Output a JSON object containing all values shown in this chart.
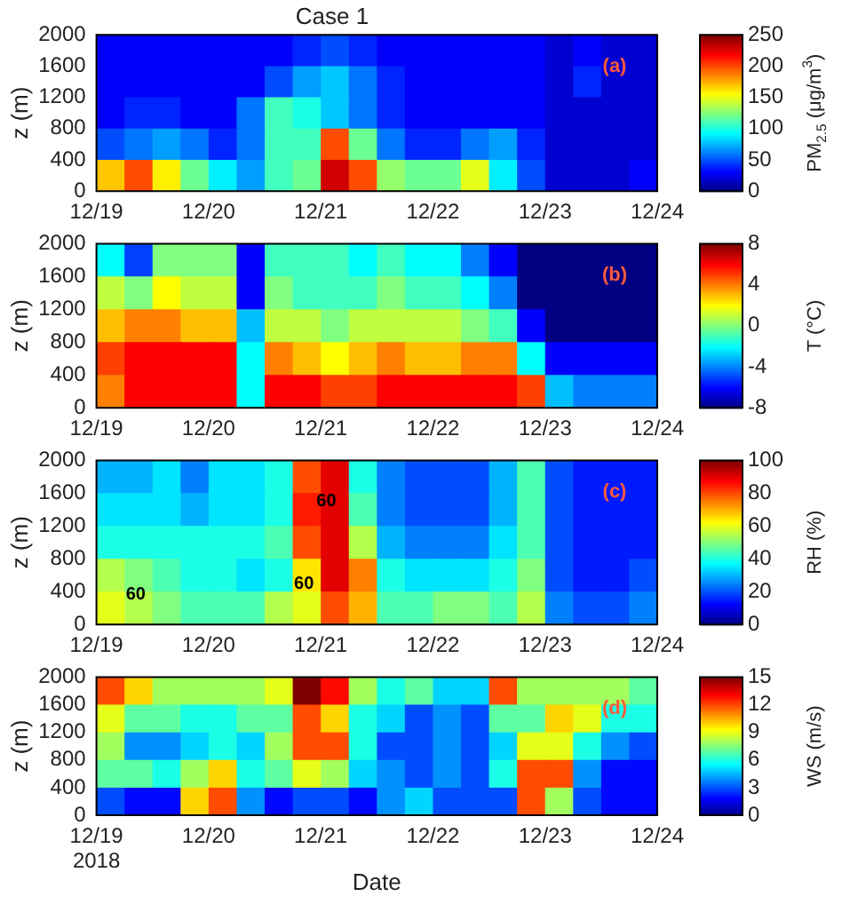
{
  "chart_data": [
    {
      "type": "heatmap",
      "title": "Case 1",
      "ylabel": "z (m)",
      "clabel": "PM$_{2.5}$ (μg/m$^{3}$)",
      "annotations": [
        "(a)"
      ],
      "x": [
        "2018-12-19T03:00",
        "2018-12-19T09:00",
        "2018-12-19T15:00",
        "2018-12-19T21:00",
        "2018-12-20T03:00",
        "2018-12-20T09:00",
        "2018-12-20T15:00",
        "2018-12-20T21:00",
        "2018-12-21T03:00",
        "2018-12-21T09:00",
        "2018-12-21T15:00",
        "2018-12-21T21:00",
        "2018-12-22T03:00",
        "2018-12-22T09:00",
        "2018-12-22T15:00",
        "2018-12-22T21:00",
        "2018-12-23T03:00",
        "2018-12-23T09:00",
        "2018-12-23T15:00",
        "2018-12-23T21:00"
      ],
      "xlim": [
        "2018-12-19",
        "2018-12-24"
      ],
      "xticks": [
        {
          "value": "2018-12-19",
          "label": "12/19"
        },
        {
          "value": "2018-12-20",
          "label": "12/20"
        },
        {
          "value": "2018-12-21",
          "label": "12/21"
        },
        {
          "value": "2018-12-22",
          "label": "12/22"
        },
        {
          "value": "2018-12-23",
          "label": "12/23"
        },
        {
          "value": "2018-12-24",
          "label": "12/24"
        }
      ],
      "ylim": [
        0,
        2000
      ],
      "yticks": [
        0,
        400,
        800,
        1200,
        1600,
        2000
      ],
      "cells": [
        [
          30,
          30,
          30,
          30,
          30,
          30,
          30,
          40,
          50,
          40,
          30,
          30,
          30,
          30,
          30,
          30,
          20,
          30,
          20,
          20
        ],
        [
          30,
          30,
          30,
          30,
          30,
          30,
          50,
          70,
          80,
          60,
          40,
          30,
          30,
          30,
          30,
          30,
          20,
          40,
          20,
          20
        ],
        [
          30,
          40,
          40,
          30,
          30,
          60,
          110,
          100,
          80,
          60,
          40,
          30,
          30,
          30,
          30,
          30,
          20,
          20,
          20,
          20
        ],
        [
          50,
          60,
          70,
          60,
          40,
          60,
          110,
          110,
          200,
          120,
          60,
          40,
          40,
          60,
          70,
          40,
          20,
          20,
          20,
          20
        ],
        [
          170,
          200,
          160,
          120,
          90,
          70,
          110,
          120,
          230,
          200,
          130,
          120,
          120,
          150,
          90,
          50,
          20,
          20,
          20,
          30
        ]
      ],
      "clim": [
        0,
        250
      ],
      "cticks": [
        0,
        50,
        100,
        150,
        200,
        250
      ]
    },
    {
      "type": "heatmap",
      "ylabel": "z (m)",
      "clabel": "T (°C)",
      "annotations": [
        "(b)"
      ],
      "x": [
        "2018-12-19T03:00",
        "2018-12-19T09:00",
        "2018-12-19T15:00",
        "2018-12-19T21:00",
        "2018-12-20T03:00",
        "2018-12-20T09:00",
        "2018-12-20T15:00",
        "2018-12-20T21:00",
        "2018-12-21T03:00",
        "2018-12-21T09:00",
        "2018-12-21T15:00",
        "2018-12-21T21:00",
        "2018-12-22T03:00",
        "2018-12-22T09:00",
        "2018-12-22T15:00",
        "2018-12-22T21:00",
        "2018-12-23T03:00",
        "2018-12-23T09:00",
        "2018-12-23T15:00",
        "2018-12-23T21:00"
      ],
      "xlim": [
        "2018-12-19",
        "2018-12-24"
      ],
      "xticks": [
        {
          "value": "2018-12-19",
          "label": "12/19"
        },
        {
          "value": "2018-12-20",
          "label": "12/20"
        },
        {
          "value": "2018-12-21",
          "label": "12/21"
        },
        {
          "value": "2018-12-22",
          "label": "12/22"
        },
        {
          "value": "2018-12-23",
          "label": "12/23"
        },
        {
          "value": "2018-12-24",
          "label": "12/24"
        }
      ],
      "ylim": [
        0,
        2000
      ],
      "yticks": [
        0,
        400,
        800,
        1200,
        1600,
        2000
      ],
      "cells": [
        [
          -2,
          -5,
          0,
          0,
          0,
          -6,
          -1,
          -1,
          -1,
          -2,
          -1,
          -2,
          -2,
          -4,
          -6,
          -8,
          -8,
          -8,
          -8,
          -8
        ],
        [
          1,
          0,
          2,
          1,
          1,
          -6,
          0,
          -1,
          -1,
          -1,
          0,
          -1,
          -1,
          -2,
          -4,
          -8,
          -8,
          -8,
          -8,
          -8
        ],
        [
          3,
          4,
          4,
          3,
          3,
          -3,
          1,
          1,
          0,
          1,
          1,
          1,
          1,
          0,
          -1,
          -6,
          -8,
          -8,
          -8,
          -8
        ],
        [
          5,
          6,
          6,
          6,
          6,
          -2,
          4,
          3,
          2,
          3,
          4,
          3,
          3,
          4,
          4,
          -2,
          -6,
          -6,
          -6,
          -6
        ],
        [
          4,
          6,
          6,
          6,
          6,
          -2,
          6,
          6,
          5,
          5,
          6,
          6,
          6,
          6,
          6,
          5,
          -3,
          -4,
          -4,
          -4
        ]
      ],
      "clim": [
        -8,
        8
      ],
      "cticks": [
        -8,
        -4,
        0,
        4,
        8
      ]
    },
    {
      "type": "heatmap",
      "ylabel": "z (m)",
      "clabel": "RH (%)",
      "annotations": [
        "(c)",
        "60",
        "60",
        "60"
      ],
      "x": [
        "2018-12-19T03:00",
        "2018-12-19T09:00",
        "2018-12-19T15:00",
        "2018-12-19T21:00",
        "2018-12-20T03:00",
        "2018-12-20T09:00",
        "2018-12-20T15:00",
        "2018-12-20T21:00",
        "2018-12-21T03:00",
        "2018-12-21T09:00",
        "2018-12-21T15:00",
        "2018-12-21T21:00",
        "2018-12-22T03:00",
        "2018-12-22T09:00",
        "2018-12-22T15:00",
        "2018-12-22T21:00",
        "2018-12-23T03:00",
        "2018-12-23T09:00",
        "2018-12-23T15:00",
        "2018-12-23T21:00"
      ],
      "xlim": [
        "2018-12-19",
        "2018-12-24"
      ],
      "xticks": [
        {
          "value": "2018-12-19",
          "label": "12/19"
        },
        {
          "value": "2018-12-20",
          "label": "12/20"
        },
        {
          "value": "2018-12-21",
          "label": "12/21"
        },
        {
          "value": "2018-12-22",
          "label": "12/22"
        },
        {
          "value": "2018-12-23",
          "label": "12/23"
        },
        {
          "value": "2018-12-24",
          "label": "12/24"
        }
      ],
      "ylim": [
        0,
        2000
      ],
      "yticks": [
        0,
        400,
        800,
        1200,
        1600,
        2000
      ],
      "cells": [
        [
          30,
          30,
          35,
          25,
          35,
          35,
          40,
          80,
          90,
          40,
          25,
          20,
          20,
          20,
          30,
          45,
          20,
          15,
          15,
          15
        ],
        [
          35,
          35,
          35,
          30,
          35,
          35,
          40,
          85,
          90,
          45,
          25,
          20,
          20,
          20,
          30,
          45,
          20,
          15,
          15,
          15
        ],
        [
          40,
          40,
          40,
          40,
          40,
          40,
          45,
          80,
          90,
          55,
          30,
          25,
          25,
          25,
          35,
          45,
          20,
          15,
          15,
          15
        ],
        [
          55,
          50,
          45,
          40,
          40,
          35,
          40,
          65,
          90,
          75,
          40,
          35,
          35,
          35,
          40,
          50,
          20,
          15,
          15,
          20
        ],
        [
          60,
          55,
          50,
          45,
          45,
          45,
          55,
          60,
          80,
          70,
          45,
          45,
          50,
          50,
          45,
          55,
          25,
          20,
          20,
          25
        ]
      ],
      "clim": [
        0,
        100
      ],
      "cticks": [
        0,
        20,
        40,
        60,
        80,
        100
      ]
    },
    {
      "type": "heatmap",
      "xlabel": "Date",
      "ylabel": "z (m)",
      "clabel": "WS (m/s)",
      "annotations": [
        "(d)",
        "2018"
      ],
      "x": [
        "2018-12-19T03:00",
        "2018-12-19T09:00",
        "2018-12-19T15:00",
        "2018-12-19T21:00",
        "2018-12-20T03:00",
        "2018-12-20T09:00",
        "2018-12-20T15:00",
        "2018-12-20T21:00",
        "2018-12-21T03:00",
        "2018-12-21T09:00",
        "2018-12-21T15:00",
        "2018-12-21T21:00",
        "2018-12-22T03:00",
        "2018-12-22T09:00",
        "2018-12-22T15:00",
        "2018-12-22T21:00",
        "2018-12-23T03:00",
        "2018-12-23T09:00",
        "2018-12-23T15:00",
        "2018-12-23T21:00"
      ],
      "xlim": [
        "2018-12-19",
        "2018-12-24"
      ],
      "xticks": [
        {
          "value": "2018-12-19",
          "label": "12/19"
        },
        {
          "value": "2018-12-20",
          "label": "12/20"
        },
        {
          "value": "2018-12-21",
          "label": "12/21"
        },
        {
          "value": "2018-12-22",
          "label": "12/22"
        },
        {
          "value": "2018-12-23",
          "label": "12/23"
        },
        {
          "value": "2018-12-24",
          "label": "12/24"
        }
      ],
      "ylim": [
        0,
        2000
      ],
      "yticks": [
        0,
        400,
        800,
        1200,
        1600,
        2000
      ],
      "cells": [
        [
          12,
          10,
          8,
          8,
          8,
          8,
          9,
          15,
          13,
          8,
          6,
          7,
          5,
          5,
          12,
          8,
          8,
          8,
          8,
          7
        ],
        [
          9,
          7,
          7,
          6,
          6,
          7,
          7,
          12,
          10,
          6,
          5,
          3,
          4,
          3,
          7,
          7,
          10,
          9,
          6,
          6
        ],
        [
          8,
          4,
          4,
          5,
          6,
          5,
          8,
          12,
          12,
          6,
          3,
          3,
          4,
          3,
          5,
          9,
          9,
          6,
          4,
          3
        ],
        [
          7,
          7,
          6,
          8,
          10,
          6,
          7,
          9,
          8,
          5,
          4,
          3,
          4,
          3,
          6,
          12,
          12,
          4,
          2,
          2
        ],
        [
          3,
          2,
          2,
          10,
          12,
          4,
          2,
          3,
          3,
          2,
          4,
          5,
          3,
          3,
          3,
          12,
          8,
          3,
          2,
          2
        ]
      ],
      "clim": [
        0,
        15
      ],
      "cticks": [
        0,
        3,
        6,
        9,
        12,
        15
      ]
    }
  ]
}
